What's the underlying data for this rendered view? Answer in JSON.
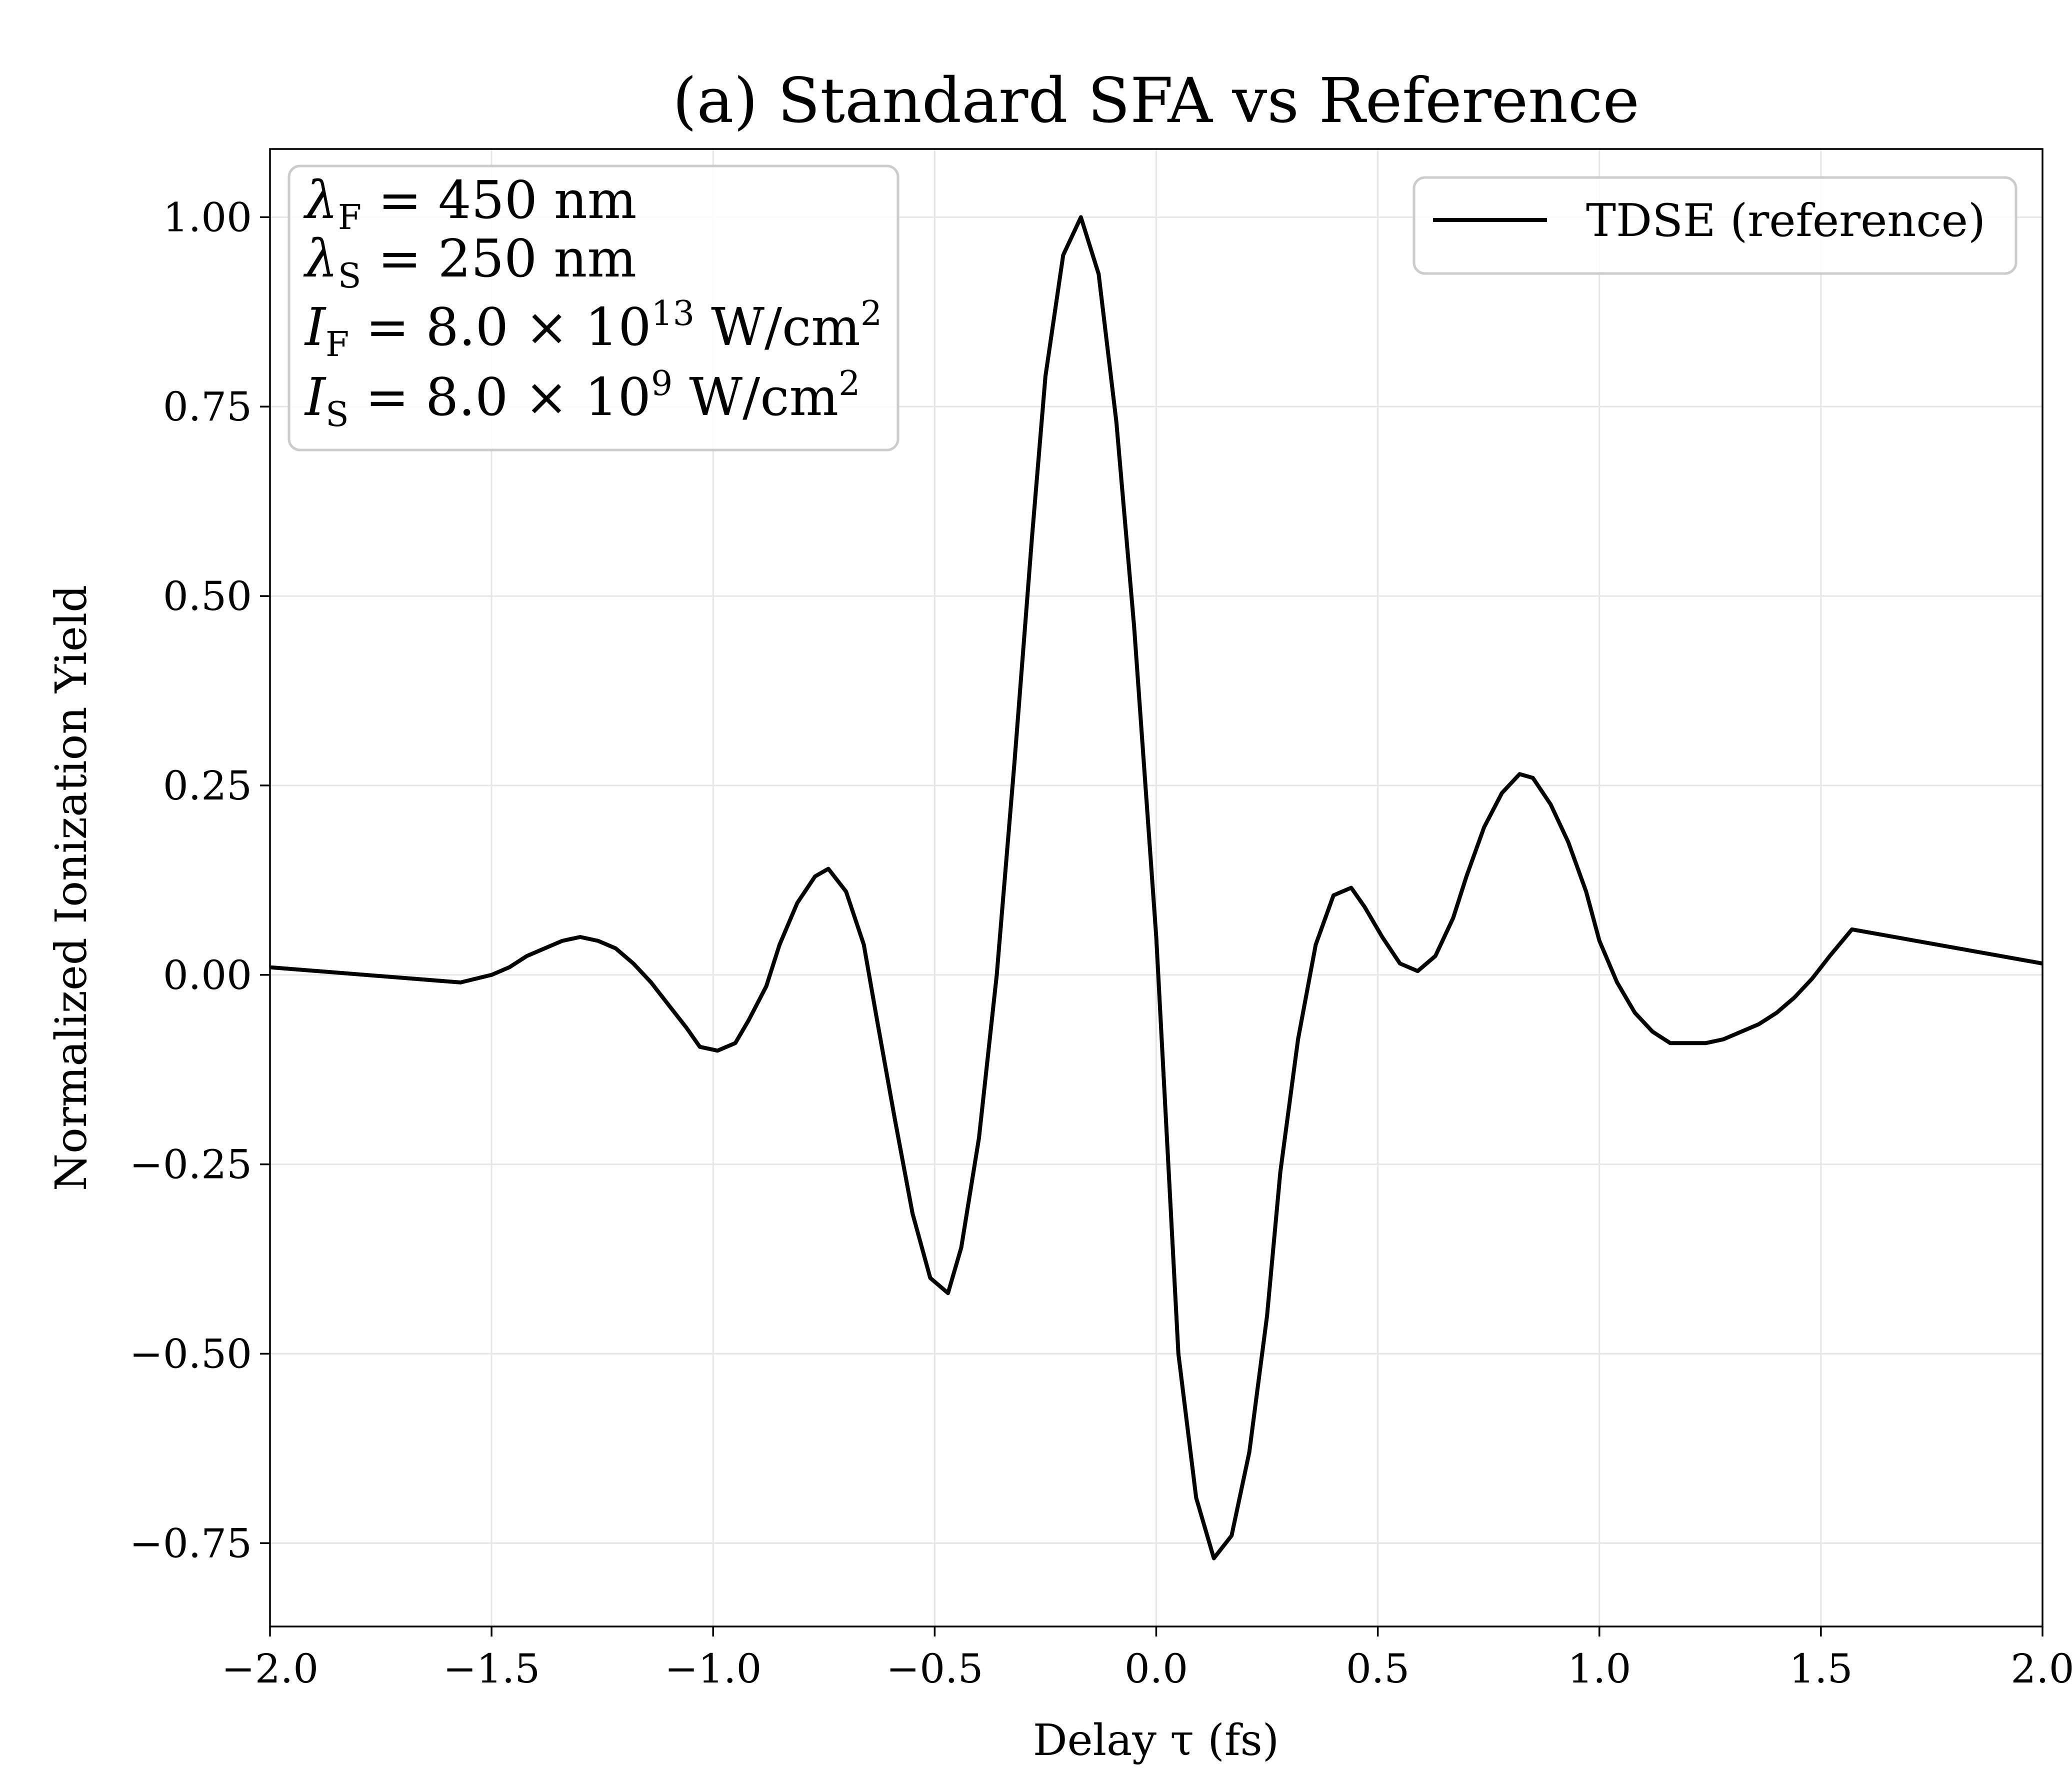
{
  "chart_data": {
    "type": "line",
    "title": "(a) Standard SFA vs Reference",
    "xlabel": "Delay τ (fs)",
    "ylabel": "Normalized Ionization Yield",
    "xlim": [
      -2.0,
      2.0
    ],
    "ylim": [
      -0.86,
      1.09
    ],
    "x_ticks": [
      -2.0,
      -1.5,
      -1.0,
      -0.5,
      0.0,
      0.5,
      1.0,
      1.5,
      2.0
    ],
    "x_tick_labels": [
      "−2.0",
      "−1.5",
      "−1.0",
      "−0.5",
      "0.0",
      "0.5",
      "1.0",
      "1.5",
      "2.0"
    ],
    "y_ticks": [
      -0.75,
      -0.5,
      -0.25,
      0.0,
      0.25,
      0.5,
      0.75,
      1.0
    ],
    "y_tick_labels": [
      "−0.75",
      "−0.50",
      "−0.25",
      "0.00",
      "0.25",
      "0.50",
      "0.75",
      "1.00"
    ],
    "grid": true,
    "legend_position": "top-right",
    "annotations": [
      {
        "base": "λ",
        "sub": "F",
        "rest": " = 450 nm"
      },
      {
        "base": "λ",
        "sub": "S",
        "rest": " = 250 nm"
      },
      {
        "base": "I",
        "sub": "F",
        "rest": " = 8.0 × 10",
        "sup": "13",
        "rest2": " W/cm",
        "sup2": "2"
      },
      {
        "base": "I",
        "sub": "S",
        "rest": " = 8.0 × 10",
        "sup": "9",
        "rest2": " W/cm",
        "sup2": "2"
      }
    ],
    "series": [
      {
        "name": "TDSE (reference)",
        "color": "#000000",
        "x": [
          -2.0,
          -1.57,
          -1.5,
          -1.46,
          -1.42,
          -1.38,
          -1.34,
          -1.3,
          -1.26,
          -1.22,
          -1.18,
          -1.14,
          -1.1,
          -1.06,
          -1.03,
          -0.99,
          -0.95,
          -0.92,
          -0.88,
          -0.85,
          -0.81,
          -0.77,
          -0.74,
          -0.7,
          -0.66,
          -0.63,
          -0.59,
          -0.55,
          -0.51,
          -0.47,
          -0.44,
          -0.4,
          -0.36,
          -0.32,
          -0.28,
          -0.25,
          -0.21,
          -0.17,
          -0.13,
          -0.09,
          -0.05,
          0.0,
          0.05,
          0.09,
          0.13,
          0.17,
          0.21,
          0.25,
          0.28,
          0.32,
          0.36,
          0.4,
          0.44,
          0.47,
          0.51,
          0.55,
          0.59,
          0.63,
          0.67,
          0.7,
          0.74,
          0.78,
          0.82,
          0.85,
          0.89,
          0.93,
          0.97,
          1.0,
          1.04,
          1.08,
          1.12,
          1.16,
          1.2,
          1.24,
          1.28,
          1.32,
          1.36,
          1.4,
          1.44,
          1.48,
          1.52,
          1.57,
          2.0
        ],
        "values": [
          0.01,
          -0.01,
          0.0,
          0.01,
          0.025,
          0.035,
          0.045,
          0.05,
          0.045,
          0.035,
          0.015,
          -0.01,
          -0.04,
          -0.07,
          -0.095,
          -0.1,
          -0.09,
          -0.06,
          -0.015,
          0.04,
          0.095,
          0.13,
          0.14,
          0.11,
          0.04,
          -0.06,
          -0.19,
          -0.315,
          -0.4,
          -0.42,
          -0.36,
          -0.215,
          0.0,
          0.28,
          0.58,
          0.79,
          0.95,
          1.0,
          0.925,
          0.73,
          0.46,
          0.05,
          -0.5,
          -0.69,
          -0.77,
          -0.74,
          -0.63,
          -0.45,
          -0.26,
          -0.085,
          0.04,
          0.105,
          0.115,
          0.09,
          0.05,
          0.015,
          0.005,
          0.025,
          0.075,
          0.13,
          0.195,
          0.24,
          0.265,
          0.26,
          0.225,
          0.175,
          0.11,
          0.045,
          -0.01,
          -0.05,
          -0.075,
          -0.09,
          -0.09,
          -0.09,
          -0.085,
          -0.075,
          -0.065,
          -0.05,
          -0.03,
          -0.005,
          0.025,
          0.06,
          0.015
        ]
      }
    ]
  }
}
